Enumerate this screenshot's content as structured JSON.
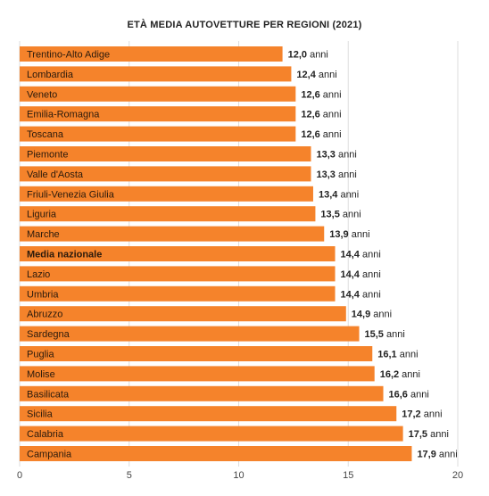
{
  "chart_data": {
    "type": "bar",
    "orientation": "horizontal",
    "title": "ETÀ MEDIA AUTOVETTURE PER REGIONI (2021)",
    "categories": [
      "Trentino-Alto Adige",
      "Lombardia",
      "Veneto",
      "Emilia-Romagna",
      "Toscana",
      "Piemonte",
      "Valle d'Aosta",
      "Friuli-Venezia Giulia",
      "Liguria",
      "Marche",
      "Media nazionale",
      "Lazio",
      "Umbria",
      "Abruzzo",
      "Sardegna",
      "Puglia",
      "Molise",
      "Basilicata",
      "Sicilia",
      "Calabria",
      "Campania"
    ],
    "values": [
      12.0,
      12.4,
      12.6,
      12.6,
      12.6,
      13.3,
      13.3,
      13.4,
      13.5,
      13.9,
      14.4,
      14.4,
      14.4,
      14.9,
      15.5,
      16.1,
      16.2,
      16.6,
      17.2,
      17.5,
      17.9
    ],
    "value_labels": [
      "12,0",
      "12,4",
      "12,6",
      "12,6",
      "12,6",
      "13,3",
      "13,3",
      "13,4",
      "13,5",
      "13,9",
      "14,4",
      "14,4",
      "14,4",
      "14,9",
      "15,5",
      "16,1",
      "16,2",
      "16,6",
      "17,2",
      "17,5",
      "17,9"
    ],
    "value_suffix": "anni",
    "highlight_category": "Media nazionale",
    "xlim": [
      0,
      20
    ],
    "xticks": [
      0,
      5,
      10,
      15,
      20
    ],
    "grid": true,
    "bar_color": "#f5832b",
    "grid_color": "#dddddd"
  }
}
